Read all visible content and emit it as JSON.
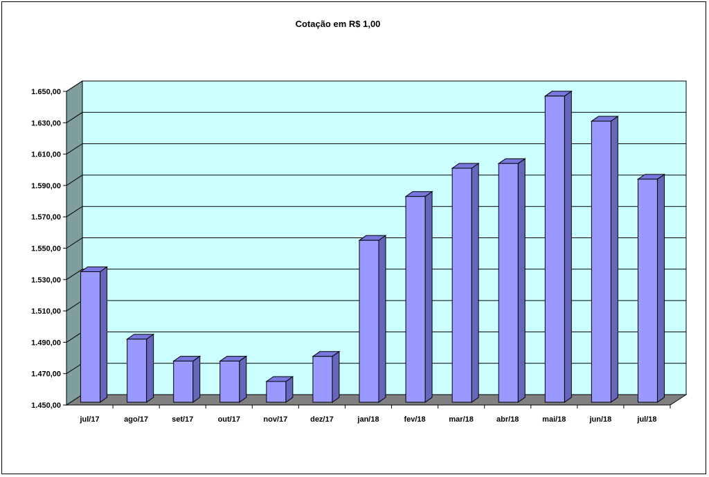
{
  "chart_data": {
    "type": "bar",
    "title": "Cotação em R$ 1,00",
    "xlabel": "",
    "ylabel": "",
    "categories": [
      "jul/17",
      "ago/17",
      "set/17",
      "out/17",
      "nov/17",
      "dez/17",
      "jan/18",
      "fev/18",
      "mar/18",
      "abr/18",
      "mai/18",
      "jun/18",
      "jul/18"
    ],
    "values": [
      1535,
      1492,
      1478,
      1478,
      1465,
      1481,
      1555,
      1583,
      1601,
      1604,
      1647,
      1631,
      1594
    ],
    "ylim": [
      1450,
      1650
    ],
    "yticks": [
      1450,
      1470,
      1490,
      1510,
      1530,
      1550,
      1570,
      1590,
      1610,
      1630,
      1650
    ],
    "ytick_labels": [
      "1.450,00",
      "1.470,00",
      "1.490,00",
      "1.510,00",
      "1.530,00",
      "1.550,00",
      "1.570,00",
      "1.590,00",
      "1.610,00",
      "1.630,00",
      "1.650,00"
    ],
    "grid": true,
    "legend": "none",
    "colors": {
      "bar_front": "#9999ff",
      "bar_side": "#6666bb",
      "bar_top": "#7777dd",
      "back_wall": "#ccffff",
      "side_wall": "#7f9f9f",
      "floor": "#808080"
    }
  }
}
